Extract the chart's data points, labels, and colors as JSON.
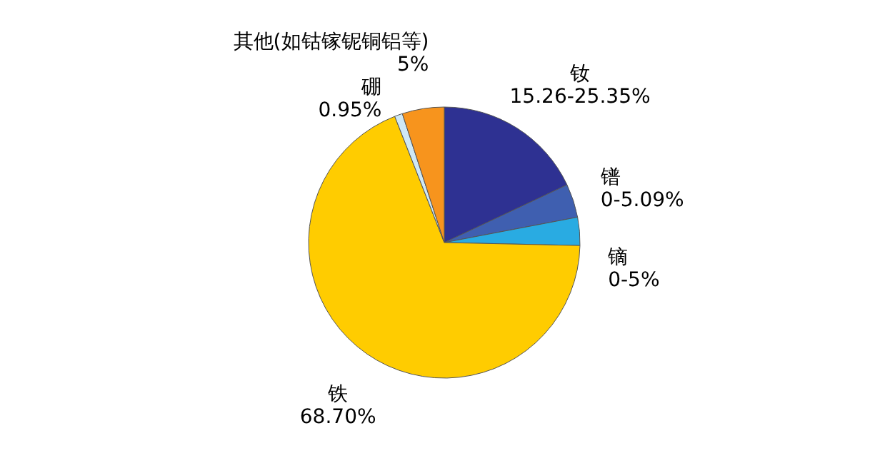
{
  "chart_data": {
    "type": "pie",
    "categories": [
      "钕",
      "镨",
      "镝",
      "铁",
      "硼",
      "其他(如钴镓铌铜铝等)"
    ],
    "values": [
      18,
      4,
      3.35,
      68.7,
      0.95,
      5
    ],
    "colors": [
      "#2e3192",
      "#3f5fb0",
      "#29abe2",
      "#ffcc00",
      "#cfe8f5",
      "#f7941d"
    ],
    "value_labels": [
      null,
      null,
      null,
      "68.70%",
      "0.95%",
      "5%"
    ],
    "annotations": [
      "15.26-25.35%",
      "0-5.09%",
      "0-5%"
    ]
  }
}
